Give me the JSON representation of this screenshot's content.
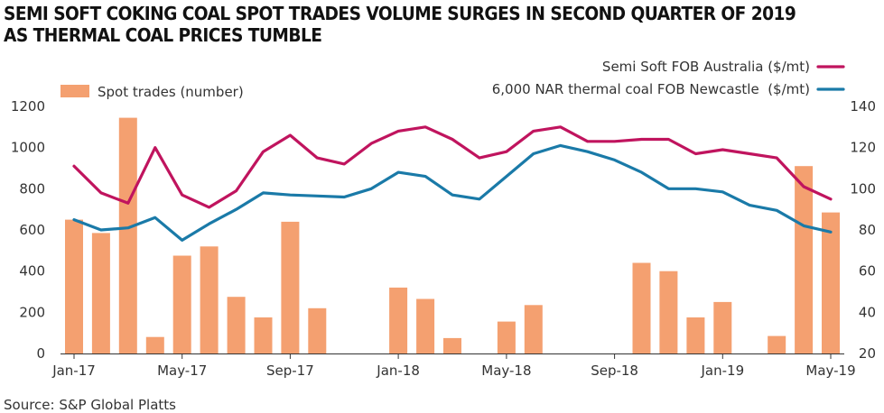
{
  "title_lines": [
    "SEMI SOFT COKING COAL SPOT TRADES VOLUME SURGES IN SECOND QUARTER OF 2019",
    "AS THERMAL COAL PRICES TUMBLE"
  ],
  "source": "Source: S&P Global Platts",
  "colors": {
    "bars": "#f4a070",
    "semi_soft": "#c0145e",
    "thermal": "#1a7aa8",
    "axis": "#333333"
  },
  "chart_data": {
    "type": "bar+line",
    "categories": [
      "Jan-17",
      "Feb-17",
      "Mar-17",
      "Apr-17",
      "May-17",
      "Jun-17",
      "Jul-17",
      "Aug-17",
      "Sep-17",
      "Oct-17",
      "Nov-17",
      "Dec-17",
      "Jan-18",
      "Feb-18",
      "Mar-18",
      "Apr-18",
      "May-18",
      "Jun-18",
      "Jul-18",
      "Aug-18",
      "Sep-18",
      "Oct-18",
      "Nov-18",
      "Dec-18",
      "Jan-19",
      "Feb-19",
      "Mar-19",
      "Apr-19",
      "May-19"
    ],
    "x_tick_labels": [
      "Jan-17",
      "May-17",
      "Sep-17",
      "Jan-18",
      "May-18",
      "Sep-18",
      "Jan-19",
      "May-19"
    ],
    "left_axis": {
      "ylim": [
        0,
        1200
      ],
      "ticks": [
        "0",
        "200",
        "400",
        "600",
        "800",
        "1000",
        "1200"
      ]
    },
    "right_axis": {
      "ylim": [
        20,
        140
      ],
      "ticks": [
        "20",
        "40",
        "60",
        "80",
        "100",
        "120",
        "140"
      ]
    },
    "series": [
      {
        "name": "Spot trades (number)",
        "type": "bar",
        "axis": "left",
        "values": [
          650,
          585,
          1145,
          80,
          475,
          520,
          275,
          175,
          640,
          220,
          0,
          0,
          320,
          265,
          75,
          0,
          155,
          235,
          0,
          0,
          0,
          440,
          400,
          175,
          250,
          0,
          85,
          910,
          685
        ]
      },
      {
        "name": "Semi Soft FOB Australia ($/mt)",
        "type": "line",
        "axis": "right",
        "values": [
          111,
          98,
          93,
          120,
          97,
          91,
          99,
          118,
          126,
          115,
          112,
          122,
          128,
          130,
          124,
          115,
          118,
          128,
          130,
          123,
          123,
          124,
          124,
          117,
          119,
          117,
          115,
          101,
          95
        ]
      },
      {
        "name": "6,000 NAR thermal coal FOB Newcastle  ($/mt)",
        "type": "line",
        "axis": "right",
        "values": [
          85,
          80,
          81,
          86,
          75,
          83,
          90,
          98,
          97,
          96.5,
          96,
          100,
          108,
          106,
          97,
          95,
          106,
          117,
          121,
          118,
          114,
          108,
          100,
          100,
          98.5,
          92,
          89.5,
          82,
          79
        ]
      }
    ],
    "legend": {
      "bars_position": "top-left",
      "lines_position": "top-right"
    }
  }
}
